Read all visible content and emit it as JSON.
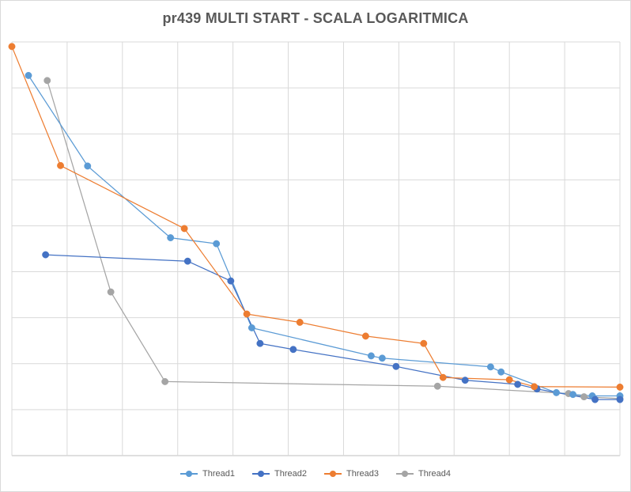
{
  "chart_data": {
    "type": "line",
    "title": "pr439 MULTI START - SCALA LOGARITMICA",
    "xlabel": "",
    "ylabel": "",
    "x_range": [
      0,
      11
    ],
    "y_range": [
      0,
      9
    ],
    "grid": {
      "horizontal": true,
      "vertical": true
    },
    "x_ticks": [
      0,
      1,
      2,
      3,
      4,
      5,
      6,
      7,
      8,
      9,
      10,
      11
    ],
    "y_ticks": [
      0,
      1,
      2,
      3,
      4,
      5,
      6,
      7,
      8,
      9
    ],
    "legend_position": "bottom",
    "series": [
      {
        "name": "Thread1",
        "color": "#5b9bd5",
        "points": [
          [
            0.3,
            8.27
          ],
          [
            1.37,
            6.3
          ],
          [
            2.87,
            4.74
          ],
          [
            3.7,
            4.61
          ],
          [
            4.34,
            2.78
          ],
          [
            6.5,
            2.17
          ],
          [
            6.7,
            2.12
          ],
          [
            8.66,
            1.93
          ],
          [
            8.85,
            1.82
          ],
          [
            9.85,
            1.37
          ],
          [
            10.15,
            1.33
          ],
          [
            10.5,
            1.3
          ],
          [
            11.0,
            1.3
          ]
        ]
      },
      {
        "name": "Thread2",
        "color": "#4472c4",
        "points": [
          [
            0.61,
            4.37
          ],
          [
            3.18,
            4.23
          ],
          [
            3.96,
            3.8
          ],
          [
            4.49,
            2.44
          ],
          [
            5.09,
            2.31
          ],
          [
            6.95,
            1.94
          ],
          [
            8.2,
            1.64
          ],
          [
            9.15,
            1.55
          ],
          [
            9.5,
            1.45
          ],
          [
            10.55,
            1.22
          ],
          [
            11.0,
            1.22
          ]
        ]
      },
      {
        "name": "Thread3",
        "color": "#ed7d31",
        "points": [
          [
            0.0,
            8.9
          ],
          [
            0.88,
            6.31
          ],
          [
            3.12,
            4.94
          ],
          [
            4.25,
            3.08
          ],
          [
            5.21,
            2.9
          ],
          [
            6.4,
            2.6
          ],
          [
            7.45,
            2.44
          ],
          [
            7.8,
            1.7
          ],
          [
            9.0,
            1.65
          ],
          [
            9.45,
            1.5
          ],
          [
            11.0,
            1.49
          ]
        ]
      },
      {
        "name": "Thread4",
        "color": "#a5a5a5",
        "points": [
          [
            0.64,
            8.16
          ],
          [
            1.79,
            3.56
          ],
          [
            2.77,
            1.61
          ],
          [
            7.7,
            1.51
          ],
          [
            10.07,
            1.35
          ],
          [
            10.35,
            1.28
          ],
          [
            11.0,
            1.24
          ]
        ]
      }
    ]
  }
}
